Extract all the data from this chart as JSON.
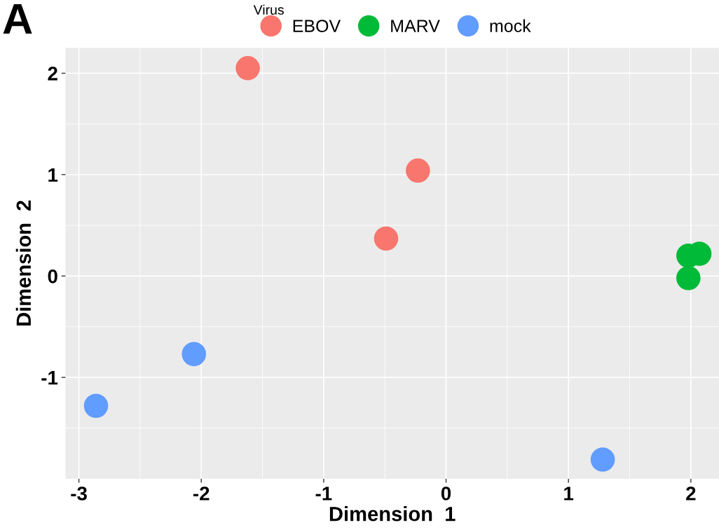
{
  "chart_data": {
    "type": "scatter",
    "xlabel": "Dimension  1",
    "ylabel": "Dimension  2",
    "legend_title": "Virus",
    "legend": "top",
    "grid": true,
    "marker": "circle",
    "annotations": [
      "A"
    ],
    "xlim": [
      -3.11,
      2.23
    ],
    "xticks": [
      {
        "value": -3,
        "label": "-3"
      },
      {
        "value": -2,
        "label": "-2"
      },
      {
        "value": -1,
        "label": "-1"
      },
      0,
      1,
      2
    ],
    "ylim": [
      -2.0,
      2.25
    ],
    "yticks": [
      {
        "value": -1,
        "label": "-1"
      },
      0,
      1,
      2
    ],
    "series": [
      {
        "name": "EBOV",
        "color": "#f8766d",
        "x": [
          -1.62,
          -0.23,
          -0.49
        ],
        "values": [
          2.05,
          1.04,
          0.37
        ]
      },
      {
        "name": "MARV",
        "color": "#00ba38",
        "x": [
          1.98,
          2.07,
          1.98
        ],
        "values": [
          0.2,
          0.22,
          -0.02
        ]
      },
      {
        "name": "mock",
        "color": "#619cff",
        "x": [
          -2.06,
          -2.86,
          1.28
        ],
        "values": [
          -0.77,
          -1.28,
          -1.81
        ]
      }
    ]
  }
}
